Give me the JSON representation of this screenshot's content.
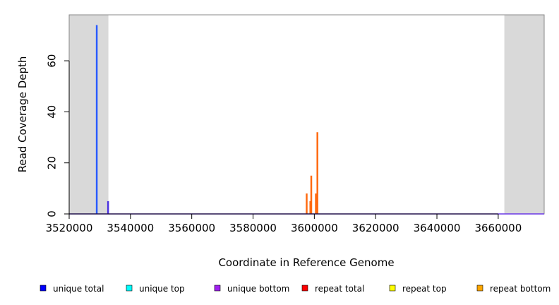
{
  "chart_data": {
    "type": "bar",
    "xlabel": "Coordinate in Reference Genome",
    "ylabel": "Read Coverage Depth",
    "xlim": [
      3520000,
      3675000
    ],
    "ylim": [
      0,
      78
    ],
    "x_ticks": [
      3520000,
      3540000,
      3560000,
      3580000,
      3600000,
      3620000,
      3640000,
      3660000
    ],
    "x_tick_labels": [
      "3520000",
      "3540000",
      "3560000",
      "3580000",
      "3600000",
      "3620000",
      "3640000",
      "3660000"
    ],
    "y_ticks": [
      0,
      20,
      40,
      60
    ],
    "y_tick_labels": [
      "0",
      "20",
      "40",
      "60"
    ],
    "shaded_regions": [
      {
        "x_start": 3520000,
        "x_end": 3532800,
        "color": "#d9d9d9"
      },
      {
        "x_start": 3662000,
        "x_end": 3675000,
        "color": "#d9d9d9"
      }
    ],
    "baseline_color": "#6a39e6",
    "series": [
      {
        "name": "unique total",
        "color": "#0000ff",
        "x": [],
        "values": []
      },
      {
        "name": "unique top",
        "color": "#00ffff",
        "x": [],
        "values": []
      },
      {
        "name": "unique bottom",
        "color": "#a020f0",
        "x": [],
        "values": []
      },
      {
        "name": "repeat total",
        "color": "#ff0000",
        "x": [],
        "values": []
      },
      {
        "name": "repeat top",
        "color": "#ffff00",
        "x": [],
        "values": []
      },
      {
        "name": "repeat bottom",
        "color": "#ffa500",
        "x": [],
        "values": []
      }
    ],
    "bars": [
      {
        "x": 3529000,
        "value": 74,
        "color": "#2a5cff"
      },
      {
        "x": 3532700,
        "value": 5,
        "color": "#4b33e0"
      },
      {
        "x": 3597500,
        "value": 8,
        "color": "#ff6a10"
      },
      {
        "x": 3598700,
        "value": 5,
        "color": "#ff6a10"
      },
      {
        "x": 3599000,
        "value": 15,
        "color": "#ff6a10"
      },
      {
        "x": 3600500,
        "value": 8,
        "color": "#ff6a10"
      },
      {
        "x": 3601000,
        "value": 32,
        "color": "#ff6a10"
      }
    ],
    "legend_placement": "bottom"
  }
}
